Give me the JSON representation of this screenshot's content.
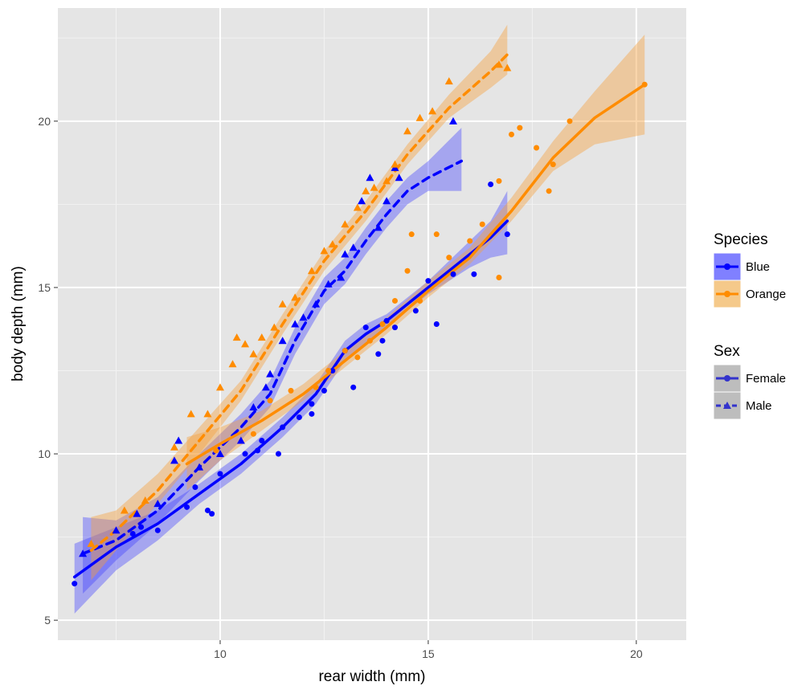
{
  "chart_data": {
    "type": "scatter",
    "xlabel": "rear width (mm)",
    "ylabel": "body depth (mm)",
    "xlim": [
      6.1,
      21.2
    ],
    "ylim": [
      4.4,
      23.4
    ],
    "x_ticks": [
      10,
      15,
      20
    ],
    "y_ticks": [
      5,
      10,
      15,
      20
    ],
    "grid": true,
    "background": "#e5e5e5",
    "colors": {
      "Blue": "#0000ff",
      "Orange": "#ff8c00"
    },
    "legend_position": "right",
    "legends": [
      {
        "title": "Species",
        "entries": [
          {
            "label": "Blue",
            "color": "#0000ff",
            "shape": "circle",
            "line": "solid",
            "fill": "#8080ff"
          },
          {
            "label": "Orange",
            "color": "#ff8c00",
            "shape": "circle",
            "line": "solid",
            "fill": "#f5c98a"
          }
        ]
      },
      {
        "title": "Sex",
        "entries": [
          {
            "label": "Female",
            "color": "#3333cc",
            "shape": "circle",
            "line": "solid",
            "fill": "#bdbdbd"
          },
          {
            "label": "Male",
            "color": "#3333cc",
            "shape": "triangle",
            "line": "dashed",
            "fill": "#bdbdbd"
          }
        ]
      }
    ],
    "series": [
      {
        "species": "Blue",
        "sex": "Female",
        "color": "#0000ff",
        "shape": "circle",
        "line": "solid",
        "points": [
          [
            6.5,
            6.1
          ],
          [
            7.9,
            7.6
          ],
          [
            8.1,
            7.8
          ],
          [
            8.5,
            7.7
          ],
          [
            9.2,
            8.4
          ],
          [
            9.4,
            9.0
          ],
          [
            9.7,
            8.3
          ],
          [
            9.8,
            8.2
          ],
          [
            10.0,
            9.4
          ],
          [
            10.6,
            10.0
          ],
          [
            10.9,
            10.1
          ],
          [
            11.0,
            10.4
          ],
          [
            11.4,
            10.0
          ],
          [
            11.5,
            10.8
          ],
          [
            11.9,
            11.1
          ],
          [
            12.2,
            11.2
          ],
          [
            12.2,
            11.5
          ],
          [
            12.5,
            11.9
          ],
          [
            12.7,
            12.5
          ],
          [
            13.0,
            13.1
          ],
          [
            13.2,
            12.0
          ],
          [
            13.5,
            13.8
          ],
          [
            13.8,
            13.0
          ],
          [
            13.9,
            13.4
          ],
          [
            14.0,
            14.0
          ],
          [
            14.2,
            13.8
          ],
          [
            14.7,
            14.3
          ],
          [
            15.0,
            15.2
          ],
          [
            15.2,
            13.9
          ],
          [
            15.6,
            15.4
          ],
          [
            16.1,
            15.4
          ],
          [
            16.5,
            18.1
          ],
          [
            16.9,
            16.6
          ]
        ],
        "fit": [
          [
            6.5,
            6.3
          ],
          [
            7.5,
            7.2
          ],
          [
            8.5,
            7.9
          ],
          [
            9.5,
            8.8
          ],
          [
            10.5,
            9.7
          ],
          [
            11.5,
            10.8
          ],
          [
            12.3,
            11.8
          ],
          [
            13.0,
            13.1
          ],
          [
            13.5,
            13.6
          ],
          [
            14.0,
            14.0
          ],
          [
            14.5,
            14.5
          ],
          [
            15.0,
            15.0
          ],
          [
            15.5,
            15.5
          ],
          [
            16.0,
            16.0
          ],
          [
            16.5,
            16.5
          ],
          [
            16.9,
            17.0
          ]
        ],
        "lower": [
          [
            6.5,
            5.2
          ],
          [
            7.5,
            6.5
          ],
          [
            8.5,
            7.4
          ],
          [
            9.5,
            8.5
          ],
          [
            10.5,
            9.4
          ],
          [
            11.5,
            10.5
          ],
          [
            12.3,
            11.5
          ],
          [
            13.0,
            12.8
          ],
          [
            13.5,
            13.3
          ],
          [
            14.0,
            13.8
          ],
          [
            14.5,
            14.3
          ],
          [
            15.0,
            14.8
          ],
          [
            15.5,
            15.2
          ],
          [
            16.0,
            15.6
          ],
          [
            16.5,
            15.9
          ],
          [
            16.9,
            16.0
          ]
        ],
        "upper": [
          [
            6.5,
            7.3
          ],
          [
            7.5,
            7.8
          ],
          [
            8.5,
            8.3
          ],
          [
            9.5,
            9.1
          ],
          [
            10.5,
            10.0
          ],
          [
            11.5,
            11.1
          ],
          [
            12.3,
            12.1
          ],
          [
            13.0,
            13.4
          ],
          [
            13.5,
            13.9
          ],
          [
            14.0,
            14.2
          ],
          [
            14.5,
            14.7
          ],
          [
            15.0,
            15.2
          ],
          [
            15.5,
            15.8
          ],
          [
            16.0,
            16.4
          ],
          [
            16.5,
            17.0
          ],
          [
            16.9,
            17.9
          ]
        ]
      },
      {
        "species": "Blue",
        "sex": "Male",
        "color": "#0000ff",
        "shape": "triangle",
        "line": "dashed",
        "points": [
          [
            6.7,
            7.0
          ],
          [
            7.5,
            7.7
          ],
          [
            8.0,
            8.2
          ],
          [
            8.5,
            8.5
          ],
          [
            8.9,
            9.8
          ],
          [
            9.0,
            10.4
          ],
          [
            9.5,
            9.6
          ],
          [
            10.0,
            10.0
          ],
          [
            10.5,
            10.4
          ],
          [
            10.8,
            11.4
          ],
          [
            11.1,
            12.0
          ],
          [
            11.2,
            12.4
          ],
          [
            11.5,
            13.4
          ],
          [
            11.8,
            13.9
          ],
          [
            12.0,
            14.1
          ],
          [
            12.3,
            14.5
          ],
          [
            12.6,
            15.1
          ],
          [
            12.9,
            15.3
          ],
          [
            13.0,
            16.0
          ],
          [
            13.2,
            16.2
          ],
          [
            13.4,
            17.6
          ],
          [
            13.6,
            18.3
          ],
          [
            13.8,
            16.8
          ],
          [
            14.0,
            17.6
          ],
          [
            14.2,
            18.6
          ],
          [
            14.3,
            18.3
          ],
          [
            15.6,
            20.0
          ]
        ],
        "fit": [
          [
            6.7,
            7.0
          ],
          [
            7.5,
            7.4
          ],
          [
            8.5,
            8.3
          ],
          [
            9.5,
            9.6
          ],
          [
            10.5,
            10.8
          ],
          [
            11.2,
            11.8
          ],
          [
            11.8,
            13.4
          ],
          [
            12.5,
            14.9
          ],
          [
            13.0,
            15.5
          ],
          [
            13.5,
            16.4
          ],
          [
            14.0,
            17.2
          ],
          [
            14.5,
            17.9
          ],
          [
            15.0,
            18.3
          ],
          [
            15.8,
            18.8
          ]
        ],
        "lower": [
          [
            6.7,
            5.8
          ],
          [
            7.5,
            6.8
          ],
          [
            8.5,
            7.9
          ],
          [
            9.5,
            9.2
          ],
          [
            10.5,
            10.4
          ],
          [
            11.2,
            11.4
          ],
          [
            11.8,
            13.0
          ],
          [
            12.5,
            14.5
          ],
          [
            13.0,
            15.1
          ],
          [
            13.5,
            16.0
          ],
          [
            14.0,
            16.8
          ],
          [
            14.5,
            17.5
          ],
          [
            15.0,
            17.9
          ],
          [
            15.8,
            17.9
          ]
        ],
        "upper": [
          [
            6.7,
            8.1
          ],
          [
            7.5,
            8.0
          ],
          [
            8.5,
            8.7
          ],
          [
            9.5,
            10.0
          ],
          [
            10.5,
            11.2
          ],
          [
            11.2,
            12.2
          ],
          [
            11.8,
            13.8
          ],
          [
            12.5,
            15.3
          ],
          [
            13.0,
            15.9
          ],
          [
            13.5,
            16.8
          ],
          [
            14.0,
            17.6
          ],
          [
            14.5,
            18.3
          ],
          [
            15.0,
            18.8
          ],
          [
            15.8,
            19.8
          ]
        ]
      },
      {
        "species": "Orange",
        "sex": "Female",
        "color": "#ff8c00",
        "shape": "circle",
        "line": "solid",
        "points": [
          [
            9.9,
            10.1
          ],
          [
            10.8,
            10.6
          ],
          [
            11.2,
            11.6
          ],
          [
            11.7,
            11.9
          ],
          [
            12.3,
            12.0
          ],
          [
            12.6,
            12.5
          ],
          [
            13.0,
            13.1
          ],
          [
            13.3,
            12.9
          ],
          [
            13.6,
            13.4
          ],
          [
            13.9,
            13.9
          ],
          [
            14.2,
            14.6
          ],
          [
            14.5,
            15.5
          ],
          [
            14.6,
            16.6
          ],
          [
            14.8,
            14.6
          ],
          [
            15.2,
            16.6
          ],
          [
            15.5,
            15.9
          ],
          [
            16.0,
            16.4
          ],
          [
            16.3,
            16.9
          ],
          [
            16.7,
            18.2
          ],
          [
            17.0,
            19.6
          ],
          [
            17.2,
            19.8
          ],
          [
            17.6,
            19.2
          ],
          [
            17.9,
            17.9
          ],
          [
            18.0,
            18.7
          ],
          [
            18.4,
            20.0
          ],
          [
            20.2,
            21.1
          ],
          [
            16.7,
            15.3
          ]
        ],
        "fit": [
          [
            9.2,
            9.7
          ],
          [
            10.0,
            10.3
          ],
          [
            11.0,
            11.0
          ],
          [
            12.0,
            11.8
          ],
          [
            13.0,
            12.8
          ],
          [
            14.0,
            13.8
          ],
          [
            15.0,
            14.9
          ],
          [
            16.0,
            15.9
          ],
          [
            17.0,
            17.3
          ],
          [
            18.0,
            18.9
          ],
          [
            19.0,
            20.1
          ],
          [
            20.2,
            21.1
          ]
        ],
        "lower": [
          [
            9.2,
            8.9
          ],
          [
            10.0,
            9.8
          ],
          [
            11.0,
            10.7
          ],
          [
            12.0,
            11.6
          ],
          [
            13.0,
            12.6
          ],
          [
            14.0,
            13.6
          ],
          [
            15.0,
            14.7
          ],
          [
            16.0,
            15.7
          ],
          [
            17.0,
            17.0
          ],
          [
            18.0,
            18.5
          ],
          [
            19.0,
            19.3
          ],
          [
            20.2,
            19.6
          ]
        ],
        "upper": [
          [
            9.2,
            10.5
          ],
          [
            10.0,
            10.8
          ],
          [
            11.0,
            11.3
          ],
          [
            12.0,
            12.1
          ],
          [
            13.0,
            13.1
          ],
          [
            14.0,
            14.1
          ],
          [
            15.0,
            15.2
          ],
          [
            16.0,
            16.2
          ],
          [
            17.0,
            17.7
          ],
          [
            18.0,
            19.4
          ],
          [
            19.0,
            20.9
          ],
          [
            20.2,
            22.6
          ]
        ]
      },
      {
        "species": "Orange",
        "sex": "Male",
        "color": "#ff8c00",
        "shape": "triangle",
        "line": "dashed",
        "points": [
          [
            6.9,
            7.3
          ],
          [
            7.7,
            8.3
          ],
          [
            8.2,
            8.6
          ],
          [
            8.9,
            10.2
          ],
          [
            9.3,
            11.2
          ],
          [
            9.7,
            11.2
          ],
          [
            10.0,
            12.0
          ],
          [
            10.3,
            12.7
          ],
          [
            10.4,
            13.5
          ],
          [
            10.6,
            13.3
          ],
          [
            10.8,
            13.0
          ],
          [
            11.0,
            13.5
          ],
          [
            11.3,
            13.8
          ],
          [
            11.5,
            14.5
          ],
          [
            11.8,
            14.7
          ],
          [
            12.2,
            15.5
          ],
          [
            12.5,
            16.1
          ],
          [
            12.7,
            16.3
          ],
          [
            13.0,
            16.9
          ],
          [
            13.3,
            17.4
          ],
          [
            13.5,
            17.9
          ],
          [
            13.7,
            18.0
          ],
          [
            14.0,
            18.2
          ],
          [
            14.2,
            18.7
          ],
          [
            14.5,
            19.7
          ],
          [
            14.8,
            20.1
          ],
          [
            15.1,
            20.3
          ],
          [
            15.5,
            21.2
          ],
          [
            16.7,
            21.7
          ],
          [
            16.9,
            21.6
          ]
        ],
        "fit": [
          [
            6.9,
            7.1
          ],
          [
            7.5,
            7.7
          ],
          [
            8.5,
            8.9
          ],
          [
            9.5,
            10.4
          ],
          [
            10.5,
            11.9
          ],
          [
            11.5,
            13.9
          ],
          [
            12.5,
            15.8
          ],
          [
            13.5,
            17.3
          ],
          [
            14.5,
            19.0
          ],
          [
            15.5,
            20.4
          ],
          [
            16.5,
            21.5
          ],
          [
            16.9,
            22.0
          ]
        ],
        "lower": [
          [
            6.9,
            6.2
          ],
          [
            7.5,
            7.1
          ],
          [
            8.5,
            8.5
          ],
          [
            9.5,
            10.0
          ],
          [
            10.5,
            11.6
          ],
          [
            11.5,
            13.6
          ],
          [
            12.5,
            15.5
          ],
          [
            13.5,
            17.0
          ],
          [
            14.5,
            18.7
          ],
          [
            15.5,
            20.1
          ],
          [
            16.5,
            21.0
          ],
          [
            16.9,
            21.4
          ]
        ],
        "upper": [
          [
            6.9,
            8.1
          ],
          [
            7.5,
            8.3
          ],
          [
            8.5,
            9.4
          ],
          [
            9.5,
            10.8
          ],
          [
            10.5,
            12.2
          ],
          [
            11.5,
            14.2
          ],
          [
            12.5,
            16.1
          ],
          [
            13.5,
            17.6
          ],
          [
            14.5,
            19.3
          ],
          [
            15.5,
            20.8
          ],
          [
            16.5,
            22.1
          ],
          [
            16.9,
            22.9
          ]
        ]
      }
    ]
  }
}
